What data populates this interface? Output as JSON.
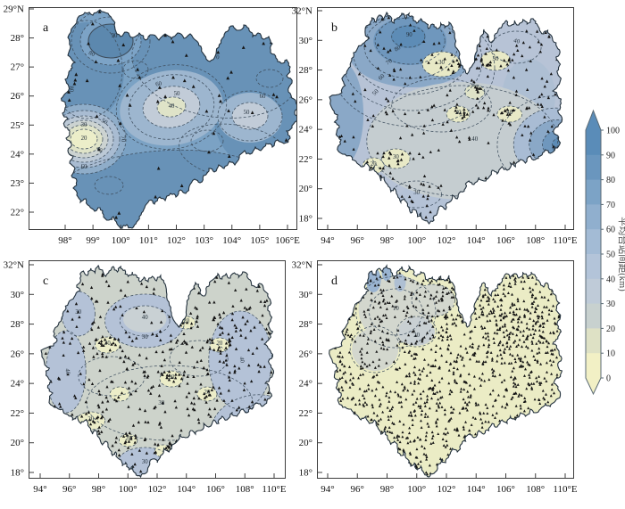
{
  "figure": {
    "station_marker": "▲",
    "panels": [
      {
        "letter": "a",
        "x_ticks": [
          "98°",
          "99°",
          "100°",
          "101°",
          "102°",
          "103°",
          "104°",
          "105°",
          "106°E"
        ],
        "y_ticks": [
          "29°N",
          "28°",
          "27°",
          "26°",
          "25°",
          "24°",
          "23°",
          "22°"
        ],
        "contour_labels": [
          "90",
          "80",
          "70",
          "60",
          "50",
          "40",
          "30",
          "20"
        ],
        "stations_approx": 52
      },
      {
        "letter": "b",
        "x_ticks": [
          "94°",
          "96°",
          "98°",
          "100°",
          "102°",
          "104°",
          "106°",
          "108°",
          "110°E"
        ],
        "y_ticks": [
          "32°N",
          "30°",
          "28°",
          "26°",
          "24°",
          "22°",
          "20°",
          "18°"
        ],
        "contour_labels": [
          "90",
          "80",
          "70",
          "60",
          "50",
          "40",
          "30",
          "20"
        ],
        "stations_approx": 244
      },
      {
        "letter": "c",
        "x_ticks": [
          "94°",
          "96°",
          "98°",
          "100°",
          "102°",
          "104°",
          "106°",
          "108°",
          "110°E"
        ],
        "y_ticks": [
          "32°N",
          "30°",
          "28°",
          "26°",
          "24°",
          "22°",
          "20°",
          "18°"
        ],
        "contour_labels": [
          "60",
          "50",
          "40",
          "30",
          "20",
          "10"
        ],
        "stations_approx": 430
      },
      {
        "letter": "d",
        "x_ticks": [
          "94°",
          "96°",
          "98°",
          "100°",
          "102°",
          "104°",
          "106°",
          "108°",
          "110°E"
        ],
        "y_ticks": [
          "32°N",
          "30°",
          "28°",
          "26°",
          "24°",
          "22°",
          "20°",
          "18°"
        ],
        "contour_labels": [
          "20",
          "10"
        ],
        "stations_approx": 1080
      }
    ],
    "colorbar": {
      "label": "平均台站间距(km)",
      "ticks": [
        "100",
        "90",
        "80",
        "70",
        "60",
        "50",
        "40",
        "30",
        "20",
        "10",
        "0"
      ],
      "colors": [
        "#5a8cb8",
        "#6a96be",
        "#7ca3c6",
        "#90afce",
        "#a3bbd5",
        "#b3c4d9",
        "#bfcbd8",
        "#c8d1cf",
        "#dee1c5",
        "#f2f0c5"
      ]
    }
  }
}
